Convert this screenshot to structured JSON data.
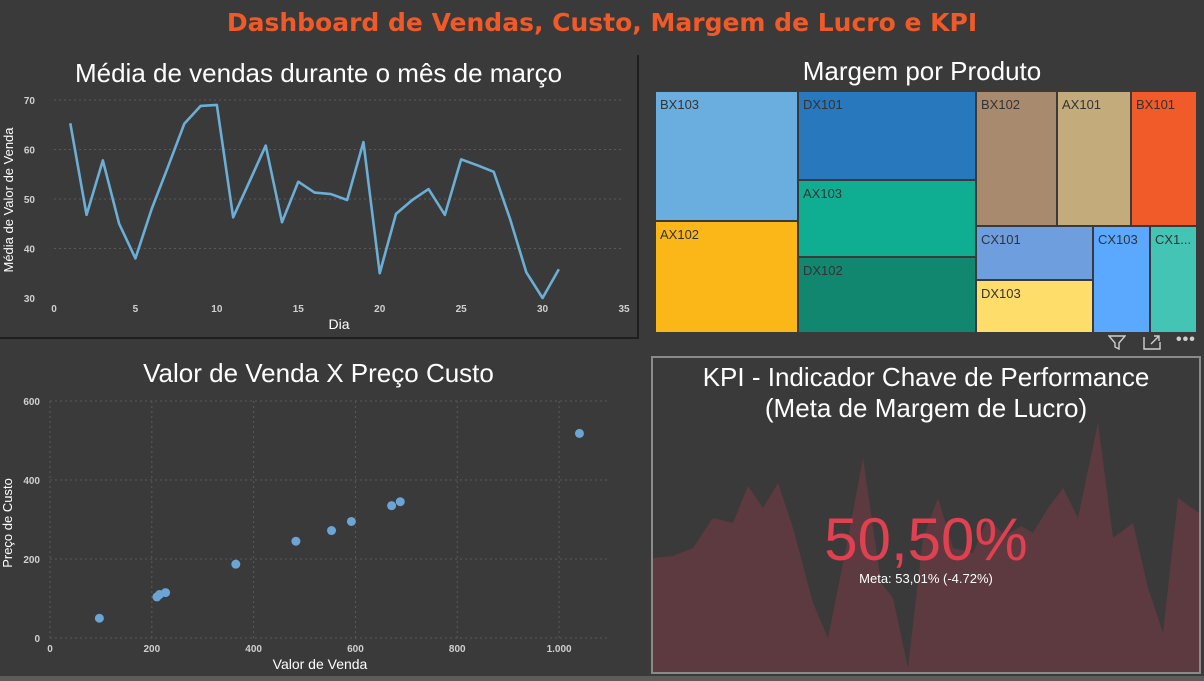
{
  "dashboard": {
    "title": "Dashboard de Vendas, Custo, Margem de Lucro e KPI",
    "title_color": "#f05a28"
  },
  "line_panel": {
    "title": "Média de vendas durante o mês de março",
    "line_color": "#6baed6"
  },
  "treemap_panel": {
    "title": "Margem por Produto",
    "toolbar": {
      "filter_icon": "filter-icon",
      "focus_icon": "focus-mode-icon",
      "more_icon": "more-options-icon"
    }
  },
  "scatter_panel": {
    "title": "Valor de Venda X Preço Custo",
    "point_color": "#6aa5d6"
  },
  "kpi_panel": {
    "title_line1": "KPI - Indicador Chave de Performance",
    "title_line2": "(Meta de Margem de Lucro)",
    "value": "50,50%",
    "goal_text": "Meta: 53,01% (-4.72%)",
    "value_color": "#e0404f",
    "area_color": "#5e3a40"
  },
  "chart_data": [
    {
      "type": "line",
      "title": "Média de vendas durante o mês de março",
      "xlabel": "Dia",
      "ylabel": "Média de Valor de Venda",
      "xlim": [
        0,
        35
      ],
      "ylim": [
        30,
        70
      ],
      "x_ticks": [
        0,
        5,
        10,
        15,
        20,
        25,
        30,
        35
      ],
      "y_ticks": [
        30,
        40,
        50,
        60,
        70
      ],
      "grid": true,
      "x": [
        1,
        2,
        3,
        4,
        5,
        6,
        7,
        8,
        9,
        10,
        11,
        12,
        13,
        14,
        15,
        16,
        17,
        18,
        19,
        20,
        21,
        22,
        23,
        24,
        25,
        26,
        27,
        28,
        29,
        30,
        31
      ],
      "values": [
        65.3,
        46.8,
        57.8,
        45.0,
        38.0,
        48.0,
        56.5,
        65.2,
        68.8,
        69.0,
        46.3,
        53.5,
        60.8,
        45.3,
        53.5,
        51.3,
        51.0,
        49.8,
        61.5,
        35.0,
        47.0,
        49.8,
        52.0,
        46.8,
        58.0,
        56.8,
        55.5,
        46.0,
        35.2,
        30.0,
        35.8
      ]
    },
    {
      "type": "treemap",
      "title": "Margem por Produto",
      "items": [
        {
          "name": "BX103",
          "color": "#6aaee0"
        },
        {
          "name": "AX102",
          "color": "#fbb617"
        },
        {
          "name": "DX101",
          "color": "#2878bd"
        },
        {
          "name": "AX103",
          "color": "#0fae93"
        },
        {
          "name": "DX102",
          "color": "#12876f"
        },
        {
          "name": "BX102",
          "color": "#a88b6e"
        },
        {
          "name": "AX101",
          "color": "#c3ab7c"
        },
        {
          "name": "BX101",
          "color": "#f15a29"
        },
        {
          "name": "CX101",
          "color": "#6e9ede"
        },
        {
          "name": "CX103",
          "color": "#5aa8ff"
        },
        {
          "name": "CX1...",
          "color": "#44c4b5"
        },
        {
          "name": "DX103",
          "color": "#fedd6a"
        }
      ]
    },
    {
      "type": "scatter",
      "title": "Valor de Venda X Preço Custo",
      "xlabel": "Valor de Venda",
      "ylabel": "Preço de Custo",
      "xlim": [
        0,
        1100
      ],
      "ylim": [
        0,
        600
      ],
      "x_ticks": [
        0,
        200,
        400,
        600,
        800,
        1000
      ],
      "x_tick_labels": [
        "0",
        "200",
        "400",
        "600",
        "800",
        "1.000"
      ],
      "y_ticks": [
        0,
        200,
        400,
        600
      ],
      "grid": true,
      "points": [
        {
          "x": 97,
          "y": 50
        },
        {
          "x": 210,
          "y": 104
        },
        {
          "x": 215,
          "y": 110
        },
        {
          "x": 227,
          "y": 115
        },
        {
          "x": 365,
          "y": 187
        },
        {
          "x": 483,
          "y": 245
        },
        {
          "x": 553,
          "y": 272
        },
        {
          "x": 592,
          "y": 295
        },
        {
          "x": 671,
          "y": 335
        },
        {
          "x": 688,
          "y": 345
        },
        {
          "x": 1040,
          "y": 518
        }
      ]
    }
  ]
}
